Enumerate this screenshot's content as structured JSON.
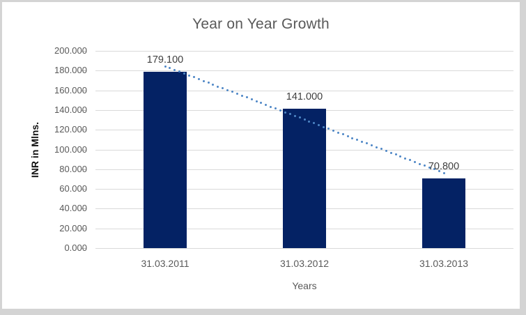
{
  "window": {
    "background_color": "#d4d4d4",
    "surface_color": "#ffffff"
  },
  "chart_data": {
    "type": "bar",
    "title": "Year on Year Growth",
    "categories": [
      "31.03.2011",
      "31.03.2012",
      "31.03.2013"
    ],
    "values": [
      179.1,
      141.0,
      70.8
    ],
    "value_labels": [
      "179.100",
      "141.000",
      "70.800"
    ],
    "xlabel": "Years",
    "ylabel": "INR in Mlns.",
    "ylim": [
      0,
      200
    ],
    "ytick_step": 20,
    "ytick_labels": [
      "0.000",
      "20.000",
      "40.000",
      "60.000",
      "80.000",
      "100.000",
      "120.000",
      "140.000",
      "160.000",
      "180.000",
      "200.000"
    ],
    "grid": true,
    "legend": "none",
    "trendline": {
      "type": "linear",
      "style": "dotted"
    },
    "colors": {
      "bar": "#042264",
      "trendline_dot": "#4e87c6",
      "gridline": "#d9d9d9",
      "tick_mark": "#c0c0c0",
      "title_text": "#595959",
      "axis_text": "#595959",
      "value_label_text": "#404040",
      "ylabel_text": "#111111"
    }
  }
}
